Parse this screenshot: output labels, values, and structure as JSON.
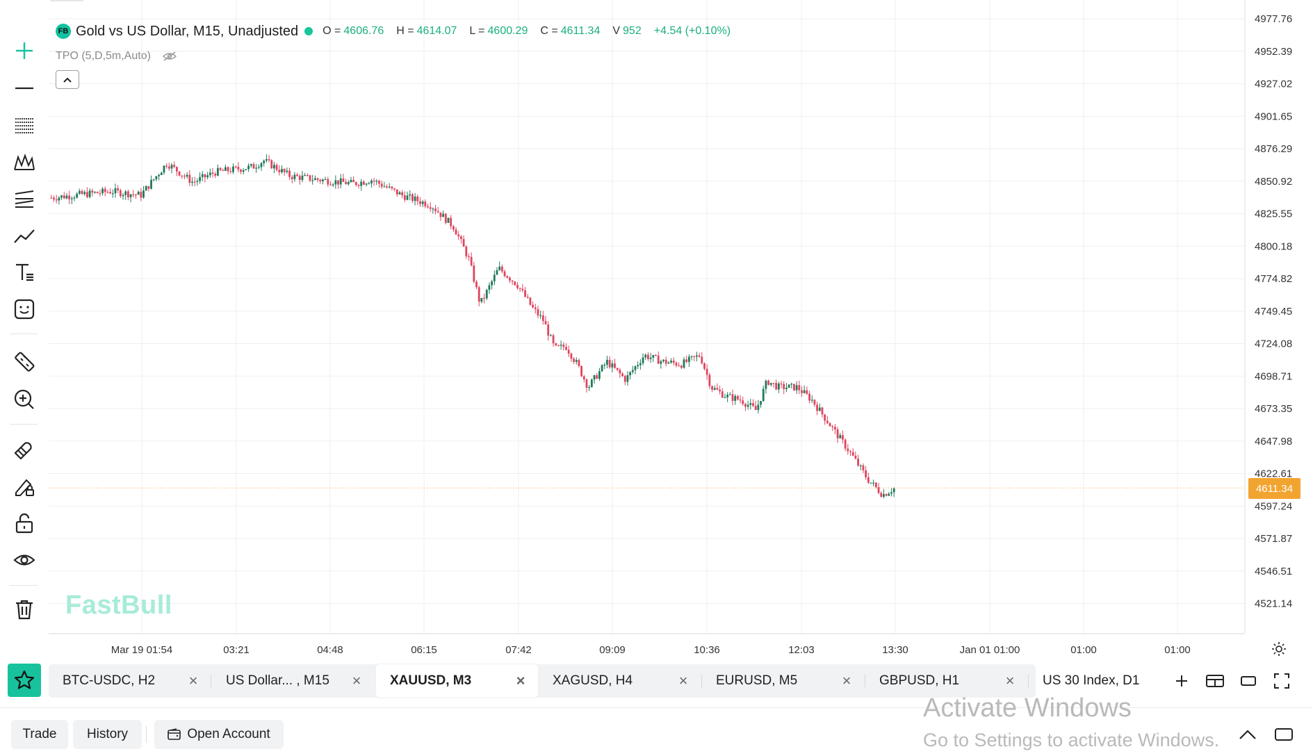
{
  "chart": {
    "title": "Gold vs US Dollar, M15, Unadjusted",
    "logo_text": "FB",
    "ohlc": {
      "o_label": "O =",
      "o": "4606.76",
      "h_label": "H =",
      "h": "4614.07",
      "l_label": "L =",
      "l": "4600.29",
      "c_label": "C =",
      "c": "4611.34",
      "v_label": "V",
      "v": "952",
      "change": "+4.54 (+0.10%)"
    },
    "indicator": "TPO (5,D,5m,Auto)",
    "watermark": "FastBull",
    "last_price": "4611.34",
    "colors": {
      "up": "#1e7a5b",
      "down": "#e0445e",
      "accent": "#17c29c",
      "last_price": "#f2a431"
    }
  },
  "chart_data": {
    "type": "candlestick",
    "y_ticks": [
      "4977.76",
      "4952.39",
      "4927.02",
      "4901.65",
      "4876.29",
      "4850.92",
      "4825.55",
      "4800.18",
      "4774.82",
      "4749.45",
      "4724.08",
      "4698.71",
      "4673.35",
      "4647.98",
      "4622.61",
      "4597.24",
      "4571.87",
      "4546.51",
      "4521.14"
    ],
    "ylim": [
      4510,
      4990
    ],
    "x_ticks": [
      "Mar 19 01:54",
      "03:21",
      "04:48",
      "06:15",
      "07:42",
      "09:09",
      "10:36",
      "12:03",
      "13:30",
      "Jan 01 01:00",
      "01:00",
      "01:00"
    ],
    "last_price": 4611.34,
    "path_keypoints": [
      {
        "t": 0,
        "price": 4838
      },
      {
        "t": 0.08,
        "price": 4843
      },
      {
        "t": 0.12,
        "price": 4840
      },
      {
        "t": 0.155,
        "price": 4865
      },
      {
        "t": 0.19,
        "price": 4850
      },
      {
        "t": 0.22,
        "price": 4858
      },
      {
        "t": 0.27,
        "price": 4862
      },
      {
        "t": 0.285,
        "price": 4867
      },
      {
        "t": 0.32,
        "price": 4855
      },
      {
        "t": 0.36,
        "price": 4852
      },
      {
        "t": 0.405,
        "price": 4849
      },
      {
        "t": 0.43,
        "price": 4852
      },
      {
        "t": 0.47,
        "price": 4840
      },
      {
        "t": 0.51,
        "price": 4832
      },
      {
        "t": 0.54,
        "price": 4815
      },
      {
        "t": 0.56,
        "price": 4790
      },
      {
        "t": 0.575,
        "price": 4755
      },
      {
        "t": 0.58,
        "price": 4760
      },
      {
        "t": 0.6,
        "price": 4783
      },
      {
        "t": 0.625,
        "price": 4770
      },
      {
        "t": 0.645,
        "price": 4752
      },
      {
        "t": 0.66,
        "price": 4742
      },
      {
        "t": 0.675,
        "price": 4720
      },
      {
        "t": 0.69,
        "price": 4722
      },
      {
        "t": 0.705,
        "price": 4708
      },
      {
        "t": 0.72,
        "price": 4690
      },
      {
        "t": 0.745,
        "price": 4710
      },
      {
        "t": 0.77,
        "price": 4696
      },
      {
        "t": 0.795,
        "price": 4715
      },
      {
        "t": 0.82,
        "price": 4710
      },
      {
        "t": 0.845,
        "price": 4708
      },
      {
        "t": 0.87,
        "price": 4715
      },
      {
        "t": 0.885,
        "price": 4690
      },
      {
        "t": 0.905,
        "price": 4683
      },
      {
        "t": 0.925,
        "price": 4680
      },
      {
        "t": 0.945,
        "price": 4672
      },
      {
        "t": 0.96,
        "price": 4695
      },
      {
        "t": 0.975,
        "price": 4690
      },
      {
        "t": 1.0,
        "price": 4690
      },
      {
        "t": 1.02,
        "price": 4680
      },
      {
        "t": 1.045,
        "price": 4660
      },
      {
        "t": 1.07,
        "price": 4640
      },
      {
        "t": 1.095,
        "price": 4618
      },
      {
        "t": 1.115,
        "price": 4606
      },
      {
        "t": 1.13,
        "price": 4611
      }
    ]
  },
  "tabs": [
    {
      "label": "BTC-USDC, H2"
    },
    {
      "label": "US Dollar... , M15"
    },
    {
      "label": "XAUUSD, M3"
    },
    {
      "label": "XAGUSD, H4"
    },
    {
      "label": "EURUSD, M5"
    },
    {
      "label": "GBPUSD, H1"
    },
    {
      "label": "US 30 Index, D1"
    }
  ],
  "tab_close_glyph": "×",
  "bottom": {
    "trade": "Trade",
    "history": "History",
    "open_account": "Open Account"
  },
  "os_overlay": {
    "line1": "Activate Windows",
    "line2": "Go to Settings to activate Windows."
  }
}
